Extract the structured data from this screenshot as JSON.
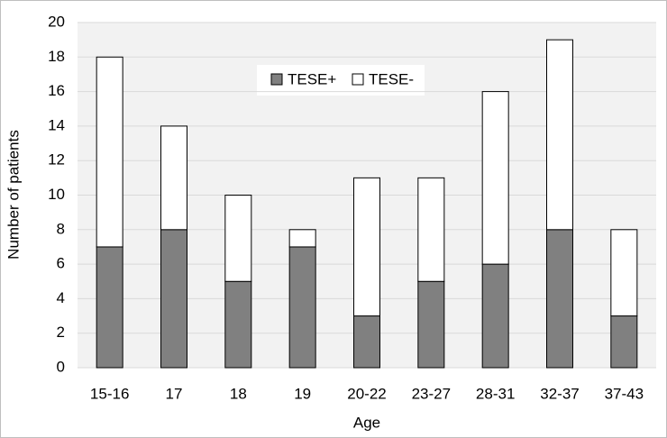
{
  "chart_data": {
    "type": "bar",
    "stacked": true,
    "xlabel": "Age",
    "ylabel": "Number of patients",
    "categories": [
      "15-16",
      "17",
      "18",
      "19",
      "20-22",
      "23-27",
      "28-31",
      "32-37",
      "37-43"
    ],
    "series": [
      {
        "name": "TESE+",
        "color": "#808080",
        "values": [
          7,
          8,
          5,
          7,
          3,
          5,
          6,
          8,
          3
        ]
      },
      {
        "name": "TESE-",
        "color": "#ffffff",
        "values": [
          11,
          6,
          5,
          1,
          8,
          6,
          10,
          11,
          5
        ]
      }
    ],
    "ylim": [
      0,
      20
    ],
    "yticks": [
      0,
      2,
      4,
      6,
      8,
      10,
      12,
      14,
      16,
      18,
      20
    ],
    "grid": true,
    "legend": "top"
  }
}
